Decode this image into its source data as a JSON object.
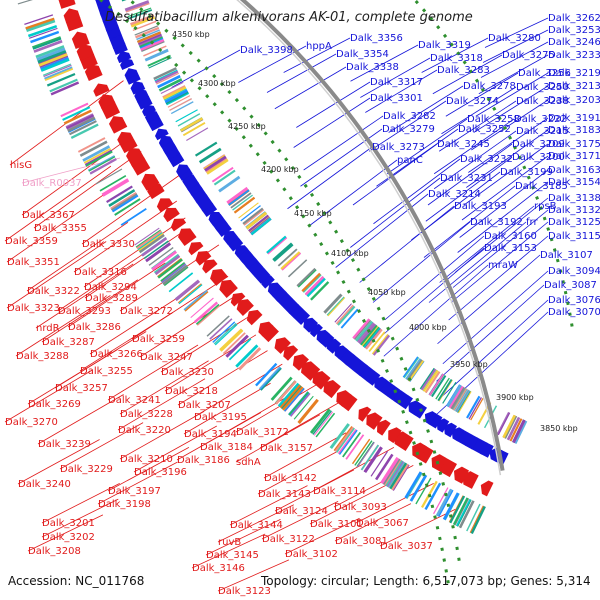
{
  "title": "Desulfatibacillum alkenivorans AK-01, complete genome",
  "footer": {
    "accession": "Accession: NC_011768",
    "summary": "Topology: circular; Length: 6,517,073 bp; Genes: 5,314"
  },
  "scale_ticks": [
    "4350 kbp",
    "4300 kbp",
    "4250 kbp",
    "4200 kbp",
    "4150 kbp",
    "4100 kbp",
    "4050 kbp",
    "4000 kbp",
    "3950 kbp",
    "3900 kbp",
    "3850 kbp"
  ],
  "colors": {
    "forward": "#e11b1b",
    "reverse": "#1515d8",
    "rna": "#f0a0c8",
    "backbone": "#8a8a8a",
    "scale_dots": "#2f8f2f"
  },
  "labels_blue": [
    "Dalk_3398",
    "hppA",
    "Dalk_3356",
    "Dalk_3354",
    "Dalk_3338",
    "Dalk_3319",
    "Dalk_3318",
    "Dalk_3280",
    "Dalk_3262",
    "Dalk_3253",
    "Dalk_3246",
    "Dalk_3275",
    "Dalk_3233",
    "Dalk_3283",
    "Dalk_3256",
    "Dalk_3219",
    "Dalk_3317",
    "Dalk_3278",
    "Dalk_3250",
    "Dalk_3213",
    "Dalk_3301",
    "Dalk_3274",
    "Dalk_3238",
    "Dalk_3203",
    "Dalk_3282",
    "Dalk_3258",
    "Dalk_3222",
    "Dalk_3191",
    "Dalk_3279",
    "Dalk_3252",
    "Dalk_3215",
    "Dalk_3183",
    "Dalk_3245",
    "Dalk_3209",
    "Dalk_3175",
    "Dalk_3273",
    "Dalk_3232",
    "Dalk_3200",
    "Dalk_3171",
    "panC",
    "Dalk_3199",
    "Dalk_3163",
    "Dalk_3231",
    "Dalk_3185",
    "Dalk_3154",
    "Dalk_3214",
    "Dalk_3138",
    "Dalk_3193",
    "rpsB",
    "Dalk_3132",
    "Dalk_3192",
    "frr",
    "Dalk_3125",
    "Dalk_3160",
    "Dalk_3115",
    "Dalk_3153",
    "Dalk_3107",
    "mraW",
    "Dalk_3094",
    "Dalk_3087",
    "Dalk_3076",
    "Dalk_3070"
  ],
  "labels_red": [
    "hisG",
    "Dalk_3367",
    "Dalk_3355",
    "Dalk_3359",
    "Dalk_3330",
    "Dalk_3351",
    "Dalk_3316",
    "Dalk_3294",
    "Dalk_3322",
    "Dalk_3289",
    "Dalk_3323",
    "Dalk_3293",
    "Dalk_3272",
    "nrdR",
    "Dalk_3286",
    "Dalk_3287",
    "Dalk_3259",
    "Dalk_3288",
    "Dalk_3266",
    "Dalk_3247",
    "Dalk_3255",
    "Dalk_3230",
    "Dalk_3257",
    "Dalk_3218",
    "Dalk_3269",
    "Dalk_3241",
    "Dalk_3207",
    "Dalk_3228",
    "Dalk_3195",
    "Dalk_3270",
    "Dalk_3220",
    "Dalk_3194",
    "Dalk_3172",
    "Dalk_3184",
    "Dalk_3239",
    "Dalk_3210",
    "Dalk_3186",
    "Dalk_3157",
    "Dalk_3229",
    "Dalk_3196",
    "sdhA",
    "Dalk_3240",
    "Dalk_3142",
    "Dalk_3197",
    "Dalk_3114",
    "Dalk_3198",
    "Dalk_3143",
    "Dalk_3093",
    "Dalk_3124",
    "Dalk_3201",
    "Dalk_3144",
    "Dalk_3101",
    "Dalk_3067",
    "Dalk_3202",
    "ruvB",
    "Dalk_3122",
    "Dalk_3081",
    "Dalk_3208",
    "Dalk_3145",
    "Dalk_3102",
    "Dalk_3037",
    "Dalk_3146",
    "Dalk_3123"
  ],
  "labels_pink": [
    "Dalk_R0037"
  ]
}
